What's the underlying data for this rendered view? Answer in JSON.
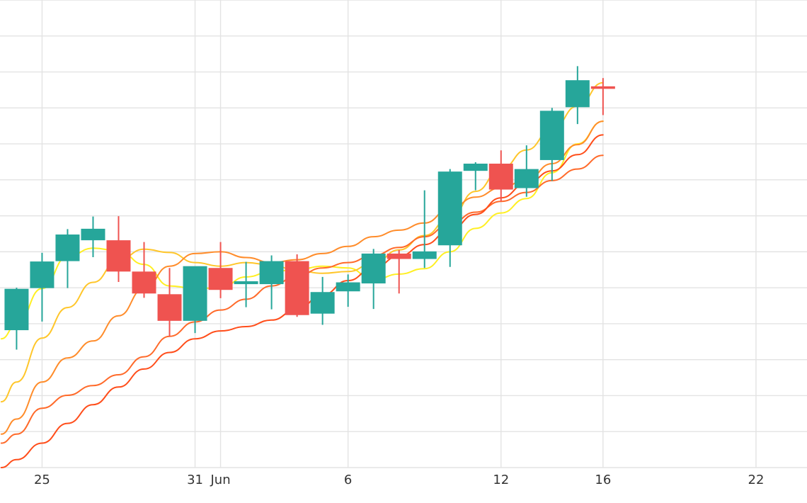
{
  "chart_data": {
    "type": "candlestick",
    "x_tick_labels": [
      {
        "label": "25",
        "day": 25
      },
      {
        "label": "31",
        "day": 31
      },
      {
        "label": "Jun",
        "day": 32
      },
      {
        "label": "6",
        "day": 37
      },
      {
        "label": "12",
        "day": 43
      },
      {
        "label": "16",
        "day": 47
      },
      {
        "label": "22",
        "day": 53
      }
    ],
    "x_range": [
      23.35,
      55.0
    ],
    "y_range": [
      0,
      13
    ],
    "grid": true,
    "candles": [
      {
        "day": 24,
        "open": 3.82,
        "high": 5.0,
        "low": 3.28,
        "close": 4.97
      },
      {
        "day": 25,
        "open": 4.99,
        "high": 5.97,
        "low": 4.06,
        "close": 5.73
      },
      {
        "day": 26,
        "open": 5.74,
        "high": 6.63,
        "low": 4.99,
        "close": 6.48
      },
      {
        "day": 27,
        "open": 6.32,
        "high": 6.98,
        "low": 5.85,
        "close": 6.64
      },
      {
        "day": 28,
        "open": 6.32,
        "high": 6.99,
        "low": 5.16,
        "close": 5.45
      },
      {
        "day": 29,
        "open": 5.45,
        "high": 6.27,
        "low": 4.72,
        "close": 4.84
      },
      {
        "day": 30,
        "open": 4.82,
        "high": 5.55,
        "low": 3.65,
        "close": 4.08
      },
      {
        "day": 31,
        "open": 4.08,
        "high": 5.53,
        "low": 3.74,
        "close": 5.6
      },
      {
        "day": 32,
        "open": 5.55,
        "high": 6.27,
        "low": 4.71,
        "close": 4.94
      },
      {
        "day": 33,
        "open": 5.1,
        "high": 5.72,
        "low": 4.46,
        "close": 5.18
      },
      {
        "day": 34,
        "open": 5.1,
        "high": 5.9,
        "low": 4.4,
        "close": 5.74
      },
      {
        "day": 35,
        "open": 5.74,
        "high": 5.93,
        "low": 4.19,
        "close": 4.24
      },
      {
        "day": 36,
        "open": 4.28,
        "high": 5.3,
        "low": 3.97,
        "close": 4.88
      },
      {
        "day": 37,
        "open": 4.9,
        "high": 5.37,
        "low": 4.47,
        "close": 5.15
      },
      {
        "day": 38,
        "open": 5.12,
        "high": 6.08,
        "low": 4.41,
        "close": 5.95
      },
      {
        "day": 39,
        "open": 5.95,
        "high": 6.05,
        "low": 4.84,
        "close": 5.8
      },
      {
        "day": 40,
        "open": 5.8,
        "high": 7.71,
        "low": 5.55,
        "close": 6.01
      },
      {
        "day": 41,
        "open": 6.18,
        "high": 8.3,
        "low": 5.58,
        "close": 8.23
      },
      {
        "day": 42,
        "open": 8.25,
        "high": 8.49,
        "low": 7.71,
        "close": 8.45
      },
      {
        "day": 43,
        "open": 8.45,
        "high": 8.82,
        "low": 7.4,
        "close": 7.73
      },
      {
        "day": 44,
        "open": 7.77,
        "high": 8.96,
        "low": 7.53,
        "close": 8.3
      },
      {
        "day": 45,
        "open": 8.55,
        "high": 10.0,
        "low": 7.97,
        "close": 9.92
      },
      {
        "day": 46,
        "open": 10.02,
        "high": 11.16,
        "low": 9.55,
        "close": 10.77
      },
      {
        "day": 47,
        "open": 10.6,
        "high": 10.83,
        "low": 9.8,
        "close": 10.53
      }
    ],
    "moving_averages": [
      {
        "color": "#ffef22",
        "points": [
          [
            23.4,
            3.58
          ],
          [
            24,
            3.98
          ],
          [
            25,
            4.98
          ],
          [
            26,
            5.87
          ],
          [
            27,
            6.1
          ],
          [
            28,
            6.03
          ],
          [
            29,
            5.65
          ],
          [
            30,
            5.05
          ],
          [
            31,
            4.98
          ],
          [
            32,
            5.0
          ],
          [
            33,
            5.3
          ],
          [
            34,
            5.45
          ],
          [
            35,
            5.5
          ],
          [
            36,
            5.6
          ],
          [
            37,
            5.55
          ],
          [
            38,
            5.22
          ],
          [
            39,
            5.38
          ],
          [
            40,
            5.53
          ],
          [
            41,
            6.0
          ],
          [
            42,
            6.65
          ],
          [
            43,
            7.08
          ],
          [
            44,
            7.48
          ],
          [
            45,
            8.2
          ],
          [
            46,
            9.0
          ],
          [
            47,
            9.63
          ]
        ]
      },
      {
        "color": "#ffc62a",
        "points": [
          [
            23.4,
            1.83
          ],
          [
            24,
            2.38
          ],
          [
            25,
            3.6
          ],
          [
            26,
            4.45
          ],
          [
            27,
            5.15
          ],
          [
            28,
            5.78
          ],
          [
            29,
            6.07
          ],
          [
            30,
            5.98
          ],
          [
            31,
            5.7
          ],
          [
            32,
            5.6
          ],
          [
            33,
            5.7
          ],
          [
            34,
            5.63
          ],
          [
            35,
            5.48
          ],
          [
            36,
            5.4
          ],
          [
            37,
            5.45
          ],
          [
            38,
            5.68
          ],
          [
            39,
            6.05
          ],
          [
            40,
            6.45
          ],
          [
            41,
            6.95
          ],
          [
            42,
            7.68
          ],
          [
            43,
            8.3
          ],
          [
            44,
            8.83
          ],
          [
            45,
            9.4
          ],
          [
            46,
            10.05
          ],
          [
            47,
            10.7
          ]
        ]
      },
      {
        "color": "#ff8c2a",
        "points": [
          [
            23.4,
            0.93
          ],
          [
            24,
            1.35
          ],
          [
            25,
            2.38
          ],
          [
            26,
            3.05
          ],
          [
            27,
            3.52
          ],
          [
            28,
            4.22
          ],
          [
            29,
            4.98
          ],
          [
            30,
            5.6
          ],
          [
            31,
            5.95
          ],
          [
            32,
            6.0
          ],
          [
            33,
            5.84
          ],
          [
            34,
            5.7
          ],
          [
            35,
            5.78
          ],
          [
            36,
            5.95
          ],
          [
            37,
            6.15
          ],
          [
            38,
            6.42
          ],
          [
            39,
            6.6
          ],
          [
            40,
            6.8
          ],
          [
            41,
            7.2
          ],
          [
            42,
            7.52
          ],
          [
            43,
            7.78
          ],
          [
            44,
            8.0
          ],
          [
            45,
            8.45
          ],
          [
            46,
            8.98
          ],
          [
            47,
            9.63
          ]
        ]
      },
      {
        "color": "#ff6a2a",
        "points": [
          [
            23.4,
            0.68
          ],
          [
            24,
            0.93
          ],
          [
            25,
            1.65
          ],
          [
            26,
            2.01
          ],
          [
            27,
            2.28
          ],
          [
            28,
            2.58
          ],
          [
            29,
            3.08
          ],
          [
            30,
            3.65
          ],
          [
            31,
            4.05
          ],
          [
            32,
            4.38
          ],
          [
            33,
            4.68
          ],
          [
            34,
            5.05
          ],
          [
            35,
            5.33
          ],
          [
            36,
            5.55
          ],
          [
            37,
            5.7
          ],
          [
            38,
            5.9
          ],
          [
            39,
            6.12
          ],
          [
            40,
            6.42
          ],
          [
            41,
            6.78
          ],
          [
            42,
            7.1
          ],
          [
            43,
            7.4
          ],
          [
            44,
            7.65
          ],
          [
            45,
            7.98
          ],
          [
            46,
            8.3
          ],
          [
            47,
            8.68
          ]
        ]
      },
      {
        "color": "#ff4d1a",
        "points": [
          [
            23.4,
            0.0
          ],
          [
            24,
            0.22
          ],
          [
            25,
            0.68
          ],
          [
            26,
            1.23
          ],
          [
            27,
            1.75
          ],
          [
            28,
            2.24
          ],
          [
            29,
            2.74
          ],
          [
            30,
            3.2
          ],
          [
            31,
            3.58
          ],
          [
            32,
            3.8
          ],
          [
            33,
            3.92
          ],
          [
            34,
            4.1
          ],
          [
            35,
            4.4
          ],
          [
            36,
            4.8
          ],
          [
            37,
            5.2
          ],
          [
            38,
            5.55
          ],
          [
            39,
            5.88
          ],
          [
            40,
            6.2
          ],
          [
            41,
            6.6
          ],
          [
            42,
            7.04
          ],
          [
            43,
            7.5
          ],
          [
            44,
            7.9
          ],
          [
            45,
            8.25
          ],
          [
            46,
            8.7
          ],
          [
            47,
            9.25
          ]
        ]
      }
    ],
    "colors": {
      "up": "#26a69a",
      "down": "#ef5350",
      "grid": "#e3e3e3",
      "background": "#ffffff",
      "tick_text": "#333333"
    }
  }
}
